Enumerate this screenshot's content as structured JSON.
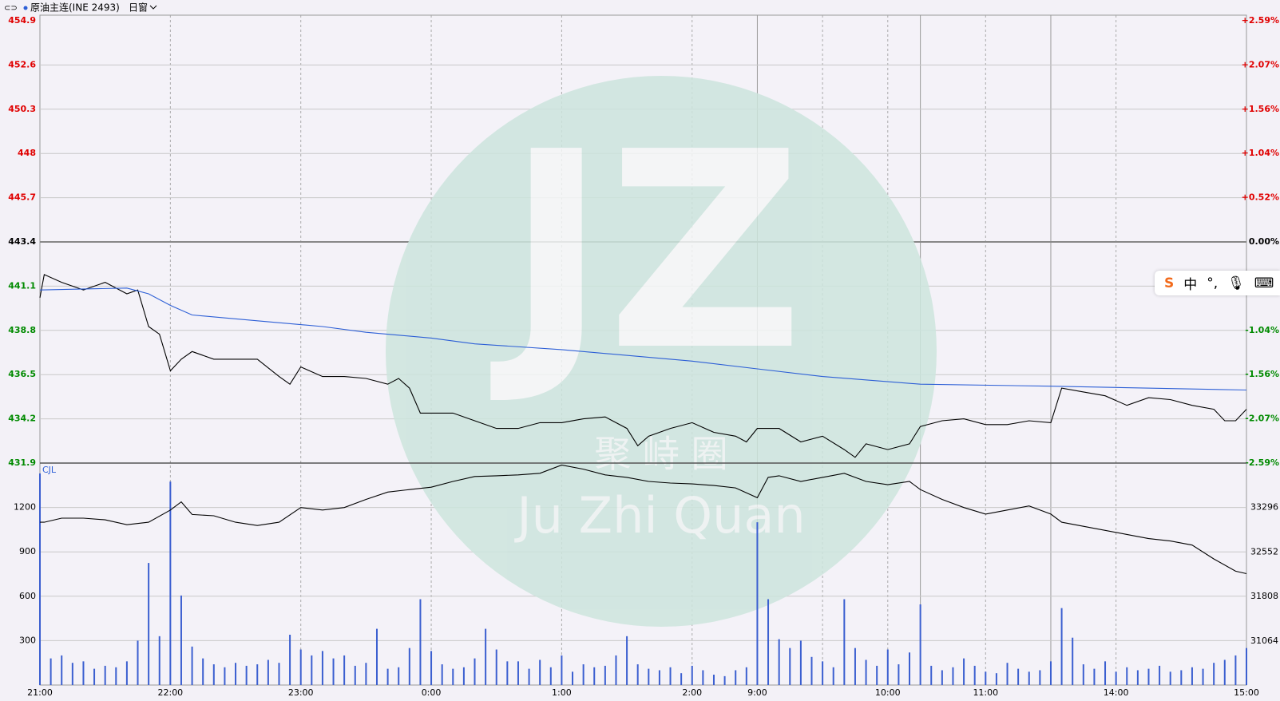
{
  "header": {
    "symbol": "原油主连(INE 2493)",
    "window": "日窗"
  },
  "watermark": {
    "logo": "JZ",
    "name_cn": "聚 峙 圈",
    "name_en": "Ju Zhi Quan"
  },
  "ime": {
    "label": "中"
  },
  "chart_data": [
    {
      "type": "line",
      "prev_close": 443.4,
      "up_color": "#e00000",
      "down_color": "#008a00",
      "xlim": [
        0,
        555
      ],
      "ylim": [
        431.9,
        454.9
      ],
      "yticks": [
        454.9,
        452.6,
        450.3,
        448.0,
        445.7,
        443.4,
        441.1,
        438.8,
        436.5,
        434.2,
        431.9
      ],
      "y2ticks": [
        {
          "value": 454.9,
          "label": "+2.59%"
        },
        {
          "value": 452.6,
          "label": "+2.07%"
        },
        {
          "value": 450.3,
          "label": "+1.56%"
        },
        {
          "value": 448.0,
          "label": "+1.04%"
        },
        {
          "value": 445.7,
          "label": "+0.52%"
        },
        {
          "value": 443.4,
          "label": "0.00%"
        },
        {
          "value": 438.8,
          "label": "-1.04%"
        },
        {
          "value": 436.5,
          "label": "-1.56%"
        },
        {
          "value": 434.2,
          "label": "-2.07%"
        },
        {
          "value": 431.9,
          "label": "-2.59%"
        }
      ],
      "series": [
        {
          "color": "#000000",
          "x": [
            0,
            2,
            10,
            20,
            30,
            40,
            45,
            50,
            55,
            60,
            65,
            70,
            80,
            90,
            100,
            110,
            115,
            120,
            130,
            140,
            150,
            160,
            165,
            170,
            175,
            180,
            190,
            200,
            210,
            220,
            230,
            240,
            250,
            260,
            270,
            275,
            280,
            290,
            300,
            310,
            320,
            325,
            330,
            340,
            350,
            360,
            370,
            375,
            380,
            390,
            400,
            405,
            415,
            425,
            435,
            445,
            455,
            465,
            470,
            480,
            490,
            500,
            510,
            520,
            530,
            540,
            545,
            550,
            555
          ],
          "values": [
            440.5,
            441.7,
            441.3,
            440.9,
            441.3,
            440.7,
            440.9,
            439.0,
            438.6,
            436.7,
            437.3,
            437.7,
            437.3,
            437.3,
            437.3,
            436.4,
            436.0,
            436.9,
            436.4,
            436.4,
            436.3,
            436.0,
            436.3,
            435.8,
            434.5,
            434.5,
            434.5,
            434.1,
            433.7,
            433.7,
            434.0,
            434.0,
            434.2,
            434.3,
            433.7,
            432.8,
            433.3,
            433.7,
            434.0,
            433.5,
            433.3,
            433.0,
            433.7,
            433.7,
            433.0,
            433.3,
            432.6,
            432.2,
            432.9,
            432.6,
            432.9,
            433.8,
            434.1,
            434.2,
            433.9,
            433.9,
            434.1,
            434.0,
            435.8,
            435.6,
            435.4,
            434.9,
            435.3,
            435.2,
            434.9,
            434.7,
            434.1,
            434.1,
            434.7
          ]
        },
        {
          "color": "#2d5fd6",
          "x": [
            0,
            40,
            50,
            60,
            70,
            100,
            130,
            150,
            180,
            200,
            240,
            300,
            330,
            360,
            405,
            465,
            555
          ],
          "values": [
            440.9,
            441.0,
            440.7,
            440.1,
            439.6,
            439.3,
            439.0,
            438.7,
            438.4,
            438.1,
            437.8,
            437.2,
            436.8,
            436.4,
            436.0,
            435.9,
            435.7
          ]
        }
      ]
    },
    {
      "type": "bar",
      "label": "CJL",
      "color": "#3b5fd0",
      "xlim": [
        0,
        555
      ],
      "xticks": [
        {
          "value": 0,
          "label": "21:00"
        },
        {
          "value": 60,
          "label": "22:00"
        },
        {
          "value": 120,
          "label": "23:00"
        },
        {
          "value": 180,
          "label": "0:00"
        },
        {
          "value": 240,
          "label": "1:00"
        },
        {
          "value": 300,
          "label": "2:00"
        },
        {
          "value": 330,
          "label": "9:00"
        },
        {
          "value": 390,
          "label": "10:00"
        },
        {
          "value": 435,
          "label": "11:00"
        },
        {
          "value": 495,
          "label": "14:00"
        },
        {
          "value": 555,
          "label": "15:00"
        }
      ],
      "xgrid": [
        360
      ],
      "session_breaks": [
        330,
        405,
        465
      ],
      "ylim": [
        0,
        1500
      ],
      "yticks": [
        300,
        600,
        900,
        1200
      ],
      "y2lim": [
        30327,
        34040
      ],
      "y2ticks": [
        31064,
        31808,
        32552,
        33296
      ],
      "x": [
        0,
        5,
        10,
        15,
        20,
        25,
        30,
        35,
        40,
        45,
        50,
        55,
        60,
        65,
        70,
        75,
        80,
        85,
        90,
        95,
        100,
        105,
        110,
        115,
        120,
        125,
        130,
        135,
        140,
        145,
        150,
        155,
        160,
        165,
        170,
        175,
        180,
        185,
        190,
        195,
        200,
        205,
        210,
        215,
        220,
        225,
        230,
        235,
        240,
        245,
        250,
        255,
        260,
        265,
        270,
        275,
        280,
        285,
        290,
        295,
        300,
        305,
        310,
        315,
        320,
        325,
        330,
        335,
        340,
        345,
        350,
        355,
        360,
        365,
        370,
        375,
        380,
        385,
        390,
        395,
        400,
        405,
        410,
        415,
        420,
        425,
        430,
        435,
        440,
        445,
        450,
        455,
        460,
        465,
        470,
        475,
        480,
        485,
        490,
        495,
        500,
        505,
        510,
        515,
        520,
        525,
        530,
        535,
        540,
        545,
        550,
        555
      ],
      "values": [
        1430,
        180,
        200,
        150,
        160,
        110,
        130,
        120,
        160,
        300,
        825,
        330,
        1375,
        605,
        260,
        180,
        140,
        120,
        150,
        130,
        140,
        170,
        150,
        340,
        240,
        200,
        230,
        180,
        200,
        130,
        150,
        380,
        110,
        120,
        250,
        580,
        230,
        140,
        110,
        120,
        180,
        380,
        240,
        160,
        160,
        110,
        170,
        120,
        200,
        90,
        140,
        120,
        130,
        200,
        330,
        140,
        110,
        100,
        120,
        80,
        130,
        100,
        70,
        60,
        100,
        120,
        1100,
        580,
        310,
        250,
        300,
        190,
        160,
        120,
        580,
        250,
        170,
        130,
        240,
        140,
        220,
        545,
        130,
        100,
        120,
        180,
        130,
        90,
        80,
        150,
        110,
        90,
        100,
        160,
        520,
        320,
        140,
        110,
        160,
        90,
        120,
        100,
        110,
        130,
        90,
        100,
        120,
        110,
        150,
        170,
        200,
        250
      ],
      "series": [
        {
          "axis": "y2",
          "color": "#000000",
          "x": [
            0,
            2,
            10,
            20,
            30,
            40,
            50,
            60,
            65,
            70,
            80,
            90,
            100,
            110,
            120,
            130,
            140,
            150,
            160,
            170,
            180,
            190,
            200,
            210,
            220,
            230,
            240,
            250,
            260,
            270,
            280,
            290,
            300,
            310,
            320,
            330,
            335,
            340,
            350,
            360,
            370,
            380,
            390,
            400,
            405,
            415,
            425,
            435,
            445,
            455,
            465,
            470,
            480,
            500,
            510,
            520,
            530,
            540,
            550,
            555
          ],
          "values": [
            33050,
            33050,
            33119,
            33119,
            33090,
            33009,
            33050,
            33255,
            33391,
            33180,
            33159,
            33050,
            32996,
            33050,
            33296,
            33255,
            33296,
            33432,
            33555,
            33596,
            33637,
            33733,
            33815,
            33828,
            33842,
            33869,
            34006,
            33938,
            33842,
            33801,
            33733,
            33706,
            33692,
            33665,
            33624,
            33460,
            33801,
            33828,
            33733,
            33801,
            33869,
            33733,
            33678,
            33733,
            33596,
            33432,
            33296,
            33187,
            33255,
            33323,
            33187,
            33050,
            32982,
            32846,
            32777,
            32736,
            32668,
            32436,
            32231,
            32190
          ]
        }
      ]
    }
  ]
}
